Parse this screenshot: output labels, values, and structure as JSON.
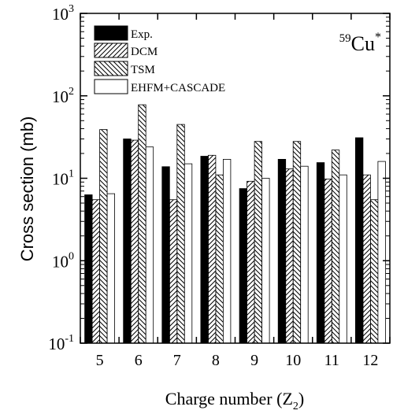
{
  "chart_data": {
    "type": "bar",
    "xlabel": "Charge number (Z",
    "xlabel_sub": "2",
    "xlabel_end": ")",
    "ylabel": "Cross section (mb)",
    "annotation": {
      "mass_number": "59",
      "element": "Cu",
      "superscript": "*"
    },
    "y_scale": "log",
    "ylim": [
      0.1,
      1000
    ],
    "y_ticks": [
      {
        "base": "10",
        "exp": "-1"
      },
      {
        "base": "10",
        "exp": "0"
      },
      {
        "base": "10",
        "exp": "1"
      },
      {
        "base": "10",
        "exp": "2"
      },
      {
        "base": "10",
        "exp": "3"
      }
    ],
    "categories": [
      "5",
      "6",
      "7",
      "8",
      "9",
      "10",
      "11",
      "12"
    ],
    "legend_placement": "top-left",
    "series": [
      {
        "name": "Exp.",
        "pattern": "solid",
        "values": [
          6.3,
          30,
          13.8,
          18.5,
          7.5,
          17,
          15.5,
          31
        ]
      },
      {
        "name": "DCM",
        "pattern": "forward-hatch",
        "values": [
          5.5,
          29,
          5.5,
          19,
          9.2,
          13,
          9.8,
          11
        ]
      },
      {
        "name": "TSM",
        "pattern": "back-hatch",
        "values": [
          39,
          78,
          45,
          11,
          28,
          28,
          22,
          5.5
        ]
      },
      {
        "name": "EHFM+CASCADE",
        "pattern": "empty",
        "values": [
          6.5,
          24,
          15,
          17,
          10,
          14,
          11,
          16
        ]
      }
    ],
    "colors": {
      "bar_fill": "#000000",
      "stroke": "#000000",
      "background": "#ffffff"
    }
  }
}
